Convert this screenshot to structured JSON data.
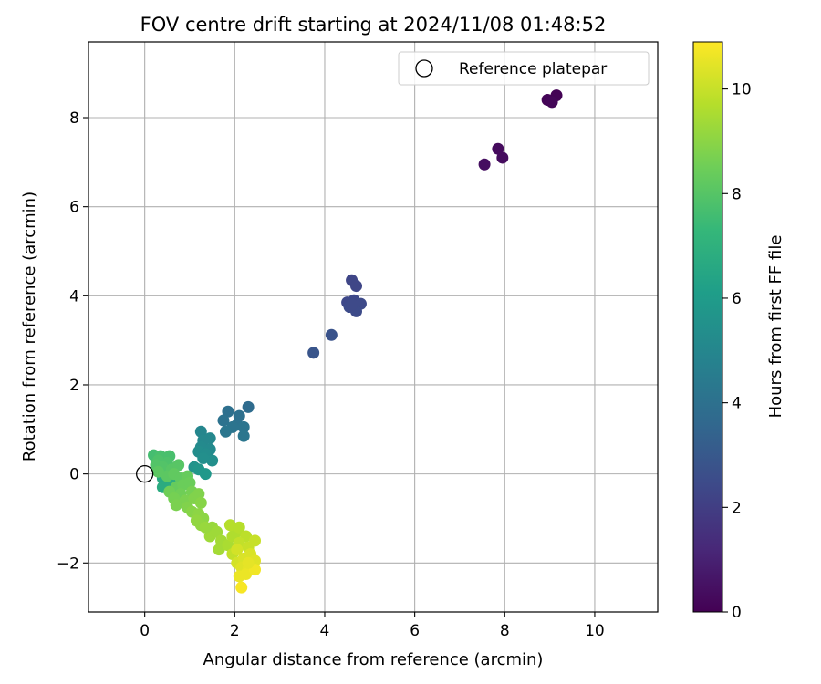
{
  "chart_data": {
    "type": "scatter",
    "title": "FOV centre drift starting at 2024/11/08 01:48:52",
    "xlabel": "Angular distance from reference (arcmin)",
    "ylabel": "Rotation from reference (arcmin)",
    "xlim": [
      -1.25,
      11.4
    ],
    "ylim": [
      -3.1,
      9.7
    ],
    "xticks": [
      0,
      2,
      4,
      6,
      8,
      10
    ],
    "yticks": [
      -2,
      0,
      2,
      4,
      6,
      8
    ],
    "xtick_labels": [
      "0",
      "2",
      "4",
      "6",
      "8",
      "10"
    ],
    "ytick_labels": [
      "−2",
      "0",
      "2",
      "4",
      "6",
      "8"
    ],
    "grid": true,
    "legend": {
      "placement": "top-right",
      "entries": [
        "Reference platepar"
      ]
    },
    "colorbar": {
      "label": "Hours from first FF file",
      "colormap": "viridis",
      "range": [
        0,
        10.9
      ],
      "ticks": [
        0,
        2,
        4,
        6,
        8,
        10
      ],
      "tick_labels": [
        "0",
        "2",
        "4",
        "6",
        "8",
        "10"
      ]
    },
    "reference_point": {
      "x": 0,
      "y": 0
    },
    "points": [
      {
        "x": 9.15,
        "y": 8.5,
        "hours": 0.05
      },
      {
        "x": 8.95,
        "y": 8.4,
        "hours": 0.1
      },
      {
        "x": 9.05,
        "y": 8.35,
        "hours": 0.15
      },
      {
        "x": 7.85,
        "y": 7.3,
        "hours": 0.3
      },
      {
        "x": 7.95,
        "y": 7.1,
        "hours": 0.35
      },
      {
        "x": 7.55,
        "y": 6.95,
        "hours": 0.4
      },
      {
        "x": 4.6,
        "y": 4.35,
        "hours": 2.3
      },
      {
        "x": 4.7,
        "y": 4.22,
        "hours": 2.3
      },
      {
        "x": 4.5,
        "y": 3.85,
        "hours": 2.4
      },
      {
        "x": 4.65,
        "y": 3.9,
        "hours": 2.4
      },
      {
        "x": 4.8,
        "y": 3.82,
        "hours": 2.45
      },
      {
        "x": 4.55,
        "y": 3.75,
        "hours": 2.5
      },
      {
        "x": 4.7,
        "y": 3.65,
        "hours": 2.5
      },
      {
        "x": 4.6,
        "y": 3.8,
        "hours": 2.45
      },
      {
        "x": 4.15,
        "y": 3.12,
        "hours": 2.8
      },
      {
        "x": 3.75,
        "y": 2.72,
        "hours": 2.9
      },
      {
        "x": 2.3,
        "y": 1.5,
        "hours": 3.8
      },
      {
        "x": 1.85,
        "y": 1.4,
        "hours": 4.0
      },
      {
        "x": 2.1,
        "y": 1.3,
        "hours": 4.0
      },
      {
        "x": 1.75,
        "y": 1.2,
        "hours": 4.1
      },
      {
        "x": 2.05,
        "y": 1.1,
        "hours": 4.1
      },
      {
        "x": 2.2,
        "y": 1.05,
        "hours": 4.2
      },
      {
        "x": 1.95,
        "y": 1.05,
        "hours": 4.2
      },
      {
        "x": 1.8,
        "y": 0.95,
        "hours": 4.3
      },
      {
        "x": 2.2,
        "y": 0.85,
        "hours": 4.3
      },
      {
        "x": 1.25,
        "y": 0.95,
        "hours": 5.0
      },
      {
        "x": 1.45,
        "y": 0.8,
        "hours": 5.1
      },
      {
        "x": 1.3,
        "y": 0.75,
        "hours": 5.1
      },
      {
        "x": 1.25,
        "y": 0.6,
        "hours": 5.2
      },
      {
        "x": 1.45,
        "y": 0.55,
        "hours": 5.2
      },
      {
        "x": 1.2,
        "y": 0.5,
        "hours": 5.3
      },
      {
        "x": 1.35,
        "y": 0.45,
        "hours": 5.3
      },
      {
        "x": 1.5,
        "y": 0.3,
        "hours": 5.4
      },
      {
        "x": 1.3,
        "y": 0.35,
        "hours": 5.4
      },
      {
        "x": 1.1,
        "y": 0.15,
        "hours": 5.6
      },
      {
        "x": 1.2,
        "y": 0.1,
        "hours": 5.7
      },
      {
        "x": 1.35,
        "y": 0.0,
        "hours": 5.8
      },
      {
        "x": 0.45,
        "y": 0.1,
        "hours": 6.4
      },
      {
        "x": 0.6,
        "y": 0.0,
        "hours": 6.5
      },
      {
        "x": 0.4,
        "y": -0.1,
        "hours": 6.6
      },
      {
        "x": 0.55,
        "y": -0.2,
        "hours": 6.7
      },
      {
        "x": 0.4,
        "y": -0.3,
        "hours": 6.7
      },
      {
        "x": 0.7,
        "y": -0.1,
        "hours": 6.8
      },
      {
        "x": 0.2,
        "y": 0.42,
        "hours": 7.6
      },
      {
        "x": 0.35,
        "y": 0.4,
        "hours": 7.7
      },
      {
        "x": 0.55,
        "y": 0.4,
        "hours": 7.7
      },
      {
        "x": 0.3,
        "y": 0.3,
        "hours": 7.8
      },
      {
        "x": 0.5,
        "y": 0.25,
        "hours": 7.8
      },
      {
        "x": 0.25,
        "y": 0.2,
        "hours": 7.9
      },
      {
        "x": 0.4,
        "y": 0.15,
        "hours": 7.9
      },
      {
        "x": 0.6,
        "y": 0.1,
        "hours": 8.0
      },
      {
        "x": 0.75,
        "y": 0.2,
        "hours": 8.0
      },
      {
        "x": 0.3,
        "y": 0.05,
        "hours": 8.1
      },
      {
        "x": 0.5,
        "y": -0.05,
        "hours": 8.1
      },
      {
        "x": 0.65,
        "y": 0.0,
        "hours": 8.2
      },
      {
        "x": 0.8,
        "y": -0.1,
        "hours": 8.2
      },
      {
        "x": 0.95,
        "y": -0.05,
        "hours": 8.3
      },
      {
        "x": 0.7,
        "y": -0.3,
        "hours": 8.3
      },
      {
        "x": 0.85,
        "y": -0.25,
        "hours": 8.4
      },
      {
        "x": 1.0,
        "y": -0.2,
        "hours": 8.4
      },
      {
        "x": 0.55,
        "y": -0.4,
        "hours": 8.5
      },
      {
        "x": 0.8,
        "y": -0.45,
        "hours": 8.5
      },
      {
        "x": 1.05,
        "y": -0.4,
        "hours": 8.6
      },
      {
        "x": 0.65,
        "y": -0.55,
        "hours": 8.6
      },
      {
        "x": 0.9,
        "y": -0.6,
        "hours": 8.7
      },
      {
        "x": 0.7,
        "y": -0.7,
        "hours": 8.7
      },
      {
        "x": 1.1,
        "y": -0.55,
        "hours": 8.8
      },
      {
        "x": 0.95,
        "y": -0.75,
        "hours": 8.8
      },
      {
        "x": 1.2,
        "y": -0.45,
        "hours": 8.8
      },
      {
        "x": 1.25,
        "y": -0.65,
        "hours": 8.9
      },
      {
        "x": 1.05,
        "y": -0.85,
        "hours": 8.9
      },
      {
        "x": 1.2,
        "y": -0.9,
        "hours": 9.0
      },
      {
        "x": 1.3,
        "y": -1.0,
        "hours": 9.0
      },
      {
        "x": 1.15,
        "y": -1.05,
        "hours": 9.1
      },
      {
        "x": 1.25,
        "y": -1.15,
        "hours": 9.1
      },
      {
        "x": 1.5,
        "y": -1.2,
        "hours": 9.2
      },
      {
        "x": 1.45,
        "y": -1.4,
        "hours": 9.3
      },
      {
        "x": 1.6,
        "y": -1.3,
        "hours": 9.3
      },
      {
        "x": 1.35,
        "y": -1.2,
        "hours": 9.2
      },
      {
        "x": 1.7,
        "y": -1.5,
        "hours": 9.4
      },
      {
        "x": 1.65,
        "y": -1.7,
        "hours": 9.4
      },
      {
        "x": 1.85,
        "y": -1.6,
        "hours": 9.5
      },
      {
        "x": 1.95,
        "y": -1.4,
        "hours": 9.6
      },
      {
        "x": 2.05,
        "y": -1.3,
        "hours": 9.6
      },
      {
        "x": 1.9,
        "y": -1.15,
        "hours": 9.7
      },
      {
        "x": 2.1,
        "y": -1.2,
        "hours": 9.7
      },
      {
        "x": 2.25,
        "y": -1.4,
        "hours": 9.8
      },
      {
        "x": 2.1,
        "y": -1.55,
        "hours": 9.9
      },
      {
        "x": 1.95,
        "y": -1.8,
        "hours": 9.9
      },
      {
        "x": 2.3,
        "y": -1.65,
        "hours": 10.0
      },
      {
        "x": 2.45,
        "y": -1.5,
        "hours": 10.0
      },
      {
        "x": 2.05,
        "y": -2.0,
        "hours": 10.2
      },
      {
        "x": 2.2,
        "y": -1.9,
        "hours": 10.3
      },
      {
        "x": 2.35,
        "y": -1.8,
        "hours": 10.3
      },
      {
        "x": 2.45,
        "y": -1.95,
        "hours": 10.4
      },
      {
        "x": 2.15,
        "y": -2.1,
        "hours": 10.4
      },
      {
        "x": 2.3,
        "y": -2.15,
        "hours": 10.5
      },
      {
        "x": 2.1,
        "y": -2.3,
        "hours": 10.6
      },
      {
        "x": 2.25,
        "y": -2.25,
        "hours": 10.6
      },
      {
        "x": 2.45,
        "y": -2.15,
        "hours": 10.7
      },
      {
        "x": 2.15,
        "y": -2.55,
        "hours": 10.8
      },
      {
        "x": 2.05,
        "y": -1.7,
        "hours": 10.2
      },
      {
        "x": 2.3,
        "y": -2.0,
        "hours": 10.5
      }
    ]
  }
}
